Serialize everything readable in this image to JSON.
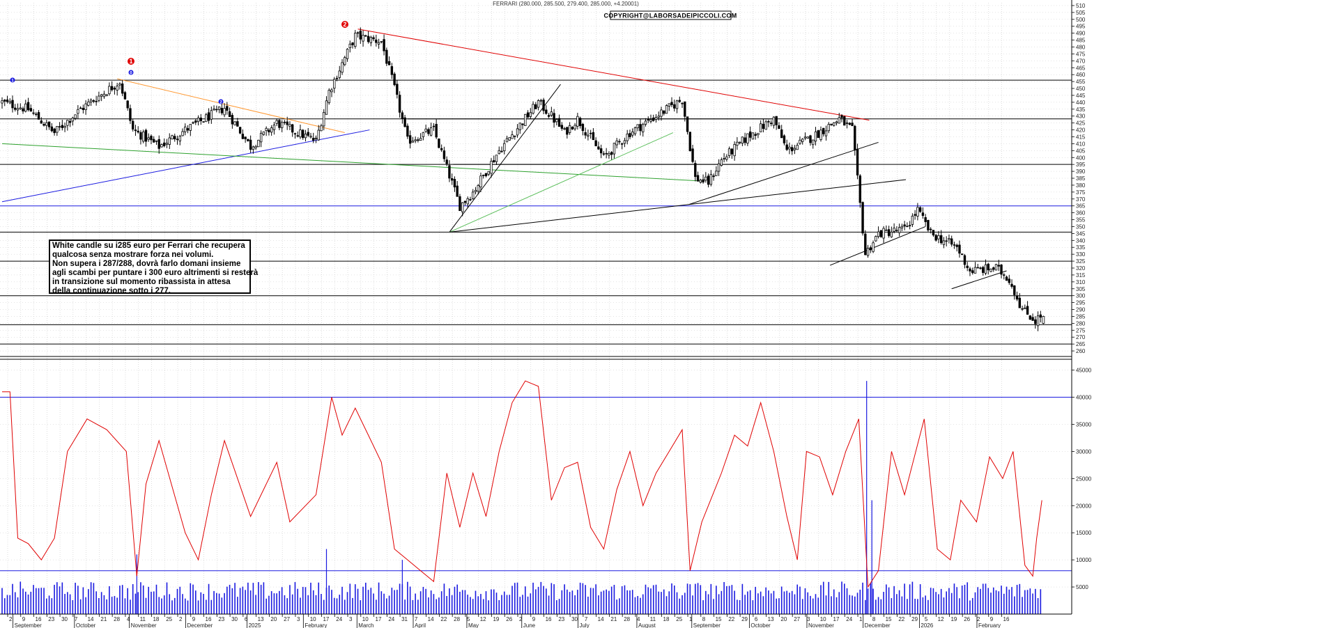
{
  "header": {
    "title": "FERRARI (280.000, 285.500, 279.400, 285.000, +4.20001)",
    "copyright": "COPYRIGHT@LABORSADEIPICCOLI.COM"
  },
  "note_lines": [
    "White candle su i285 euro per Ferrari che  recupera",
    "qualcosa senza mostrare forza nei volumi.",
    "Non supera i 287/288, dovrà farlo domani insieme",
    "agli scambi per puntare i 300 euro altrimenti si resterà",
    "in transizione sul momento ribassista in attesa",
    "della continuazione sotto i 277."
  ],
  "markers": [
    {
      "label": "1",
      "color": "#e00000"
    },
    {
      "label": "2",
      "color": "#e00000"
    }
  ],
  "wave_labels": [
    "1",
    "0",
    "2"
  ],
  "colors": {
    "candle": "#000000",
    "volume_bars": "#1a1ae0",
    "volume_average": "#e00000",
    "downtrend_line": "#e00000",
    "orange_line": "#ff9933",
    "uptrend_blue": "#1a1ae0",
    "green_line": "#2ca02c",
    "light_green_line": "#5cbf5c",
    "horizontal_levels_black": "#000000",
    "horizontal_levels_blue": "#1a1ae0",
    "grid": "#c8c8c8"
  },
  "chart_data": [
    {
      "type": "candlestick",
      "title": "FERRARI (280.000, 285.500, 279.400, 285.000, +4.20001)",
      "last_bar": {
        "open": 280.0,
        "high": 285.5,
        "low": 279.4,
        "close": 285.0,
        "change": 4.20001
      },
      "y_ticks": [
        510,
        505,
        500,
        495,
        490,
        485,
        480,
        475,
        470,
        465,
        460,
        455,
        450,
        445,
        440,
        435,
        430,
        425,
        420,
        415,
        410,
        405,
        400,
        395,
        390,
        385,
        380,
        375,
        370,
        365,
        360,
        355,
        350,
        345,
        340,
        335,
        330,
        325,
        320,
        315,
        310,
        305,
        300,
        295,
        290,
        285,
        280,
        275,
        270,
        265,
        260
      ],
      "ylim": [
        256,
        512
      ],
      "x_ticks": [
        "2",
        "9",
        "16",
        "23",
        "30",
        "7",
        "14",
        "21",
        "28",
        "4",
        "11",
        "18",
        "25",
        "2",
        "9",
        "16",
        "23",
        "30",
        "6",
        "13",
        "20",
        "27",
        "3",
        "10",
        "17",
        "24",
        "3",
        "10",
        "17",
        "24",
        "31",
        "7",
        "14",
        "22",
        "28",
        "5",
        "12",
        "19",
        "26",
        "2",
        "9",
        "16",
        "23",
        "30",
        "7",
        "14",
        "21",
        "28",
        "4",
        "11",
        "18",
        "25",
        "1",
        "8",
        "15",
        "22",
        "29",
        "6",
        "13",
        "20",
        "27",
        "3",
        "10",
        "17",
        "24",
        "1",
        "8",
        "15",
        "22",
        "29",
        "5",
        "12",
        "19",
        "26",
        "2",
        "9",
        "16"
      ],
      "month_labels": [
        "September",
        "October",
        "November",
        "December",
        "2025",
        "February",
        "March",
        "April",
        "May",
        "June",
        "July",
        "August",
        "September",
        "October",
        "November",
        "December",
        "2026",
        "February"
      ],
      "anchors": [
        {
          "week": 0,
          "close": 440
        },
        {
          "week": 2,
          "close": 435
        },
        {
          "week": 4,
          "close": 418
        },
        {
          "week": 6,
          "close": 435
        },
        {
          "week": 9,
          "close": 455
        },
        {
          "week": 10,
          "close": 420
        },
        {
          "week": 12,
          "close": 408
        },
        {
          "week": 14,
          "close": 420
        },
        {
          "week": 17,
          "close": 436
        },
        {
          "week": 19,
          "close": 408
        },
        {
          "week": 21,
          "close": 425
        },
        {
          "week": 24,
          "close": 412
        },
        {
          "week": 25,
          "close": 448
        },
        {
          "week": 27,
          "close": 488
        },
        {
          "week": 29,
          "close": 484
        },
        {
          "week": 30,
          "close": 450
        },
        {
          "week": 31,
          "close": 412
        },
        {
          "week": 33,
          "close": 420
        },
        {
          "week": 35,
          "close": 365
        },
        {
          "week": 36,
          "close": 375
        },
        {
          "week": 38,
          "close": 405
        },
        {
          "week": 41,
          "close": 440
        },
        {
          "week": 42,
          "close": 430
        },
        {
          "week": 43,
          "close": 418
        },
        {
          "week": 44,
          "close": 428
        },
        {
          "week": 46,
          "close": 400
        },
        {
          "week": 48,
          "close": 418
        },
        {
          "week": 50,
          "close": 430
        },
        {
          "week": 52,
          "close": 442
        },
        {
          "week": 53,
          "close": 385
        },
        {
          "week": 54,
          "close": 382
        },
        {
          "week": 55,
          "close": 398
        },
        {
          "week": 57,
          "close": 415
        },
        {
          "week": 59,
          "close": 428
        },
        {
          "week": 60,
          "close": 405
        },
        {
          "week": 62,
          "close": 415
        },
        {
          "week": 64,
          "close": 428
        },
        {
          "week": 65,
          "close": 420
        },
        {
          "week": 66,
          "close": 330
        },
        {
          "week": 67,
          "close": 345
        },
        {
          "week": 69,
          "close": 348
        },
        {
          "week": 70,
          "close": 362
        },
        {
          "week": 71,
          "close": 345
        },
        {
          "week": 73,
          "close": 335
        },
        {
          "week": 74,
          "close": 318
        },
        {
          "week": 76,
          "close": 320
        },
        {
          "week": 77,
          "close": 312
        },
        {
          "week": 78,
          "close": 290
        },
        {
          "week": 79,
          "close": 282
        },
        {
          "week": 79.4,
          "close": 285
        }
      ],
      "horizontal_levels": [
        456,
        428,
        395,
        365,
        346,
        325,
        300,
        279,
        265
      ],
      "trend_lines": [
        {
          "name": "downtrend-red",
          "from": {
            "week": 27.2,
            "price": 493
          },
          "to": {
            "week": 66.3,
            "price": 427
          }
        },
        {
          "name": "orange",
          "from": {
            "week": 8.8,
            "price": 457
          },
          "to": {
            "week": 26.2,
            "price": 418
          }
        },
        {
          "name": "blue-uptrend",
          "from": {
            "week": 0,
            "price": 368
          },
          "to": {
            "week": 28.1,
            "price": 420
          }
        },
        {
          "name": "green",
          "from": {
            "week": 0,
            "price": 410
          },
          "to": {
            "week": 53.5,
            "price": 383
          }
        },
        {
          "name": "black-fan-steep",
          "from": {
            "week": 34.2,
            "price": 346
          },
          "to": {
            "week": 42.7,
            "price": 453
          }
        },
        {
          "name": "green-fan",
          "from": {
            "week": 34.2,
            "price": 346
          },
          "to": {
            "week": 51.3,
            "price": 418
          }
        },
        {
          "name": "black-fan-flat",
          "from": {
            "week": 34.2,
            "price": 346
          },
          "to": {
            "week": 52.5,
            "price": 366
          }
        },
        {
          "name": "black-wedge-low",
          "from": {
            "week": 52.5,
            "price": 366
          },
          "to": {
            "week": 69.1,
            "price": 384
          }
        },
        {
          "name": "black-wedge-high",
          "from": {
            "week": 52.5,
            "price": 366
          },
          "to": {
            "week": 67.0,
            "price": 411
          }
        },
        {
          "name": "black-short-up",
          "from": {
            "week": 63.3,
            "price": 322
          },
          "to": {
            "week": 70.6,
            "price": 350
          }
        },
        {
          "name": "black-short-dec",
          "from": {
            "week": 72.6,
            "price": 305
          },
          "to": {
            "week": 76.8,
            "price": 318
          }
        }
      ]
    },
    {
      "type": "bar+line",
      "title": "",
      "y_ticks": [
        45000,
        40000,
        35000,
        30000,
        25000,
        20000,
        15000,
        10000,
        5000
      ],
      "ylim": [
        0,
        47000
      ],
      "horizontal_levels": [
        40000,
        8000
      ],
      "volume_average_anchors": [
        {
          "week": 0,
          "v": 41000
        },
        {
          "week": 0.6,
          "v": 41000
        },
        {
          "week": 1.2,
          "v": 14000
        },
        {
          "week": 2,
          "v": 13000
        },
        {
          "week": 3,
          "v": 10000
        },
        {
          "week": 4,
          "v": 14000
        },
        {
          "week": 5,
          "v": 30000
        },
        {
          "week": 6.5,
          "v": 36000
        },
        {
          "week": 8,
          "v": 34000
        },
        {
          "week": 9.5,
          "v": 30000
        },
        {
          "week": 10.3,
          "v": 7000
        },
        {
          "week": 11,
          "v": 24000
        },
        {
          "week": 12,
          "v": 32000
        },
        {
          "week": 14,
          "v": 15000
        },
        {
          "week": 15,
          "v": 10000
        },
        {
          "week": 16,
          "v": 22000
        },
        {
          "week": 17,
          "v": 32000
        },
        {
          "week": 18,
          "v": 25000
        },
        {
          "week": 19,
          "v": 18000
        },
        {
          "week": 21,
          "v": 28000
        },
        {
          "week": 22,
          "v": 17000
        },
        {
          "week": 24,
          "v": 22000
        },
        {
          "week": 25.2,
          "v": 40000
        },
        {
          "week": 26,
          "v": 33000
        },
        {
          "week": 27,
          "v": 38000
        },
        {
          "week": 28,
          "v": 33000
        },
        {
          "week": 29,
          "v": 28000
        },
        {
          "week": 30,
          "v": 12000
        },
        {
          "week": 31,
          "v": 10000
        },
        {
          "week": 32,
          "v": 8000
        },
        {
          "week": 33,
          "v": 6000
        },
        {
          "week": 34,
          "v": 26000
        },
        {
          "week": 35,
          "v": 16000
        },
        {
          "week": 36,
          "v": 26000
        },
        {
          "week": 37,
          "v": 18000
        },
        {
          "week": 38,
          "v": 30000
        },
        {
          "week": 39,
          "v": 39000
        },
        {
          "week": 40,
          "v": 43000
        },
        {
          "week": 41,
          "v": 42000
        },
        {
          "week": 42,
          "v": 21000
        },
        {
          "week": 43,
          "v": 27000
        },
        {
          "week": 44,
          "v": 28000
        },
        {
          "week": 45,
          "v": 16000
        },
        {
          "week": 46,
          "v": 12000
        },
        {
          "week": 47,
          "v": 23000
        },
        {
          "week": 48,
          "v": 30000
        },
        {
          "week": 49,
          "v": 20000
        },
        {
          "week": 50,
          "v": 26000
        },
        {
          "week": 51,
          "v": 30000
        },
        {
          "week": 52,
          "v": 34000
        },
        {
          "week": 52.6,
          "v": 8000
        },
        {
          "week": 53.5,
          "v": 17000
        },
        {
          "week": 55,
          "v": 26000
        },
        {
          "week": 56,
          "v": 33000
        },
        {
          "week": 57,
          "v": 31000
        },
        {
          "week": 58,
          "v": 39000
        },
        {
          "week": 59,
          "v": 30000
        },
        {
          "week": 60,
          "v": 18000
        },
        {
          "week": 60.8,
          "v": 10000
        },
        {
          "week": 61.5,
          "v": 30000
        },
        {
          "week": 62.5,
          "v": 29000
        },
        {
          "week": 63.5,
          "v": 22000
        },
        {
          "week": 64.5,
          "v": 30000
        },
        {
          "week": 65.5,
          "v": 36000
        },
        {
          "week": 66.2,
          "v": 5000
        },
        {
          "week": 67,
          "v": 8000
        },
        {
          "week": 68,
          "v": 30000
        },
        {
          "week": 69,
          "v": 22000
        },
        {
          "week": 70.5,
          "v": 36000
        },
        {
          "week": 71.5,
          "v": 12000
        },
        {
          "week": 72.5,
          "v": 10000
        },
        {
          "week": 73.3,
          "v": 21000
        },
        {
          "week": 74.5,
          "v": 17000
        },
        {
          "week": 75.5,
          "v": 29000
        },
        {
          "week": 76.5,
          "v": 25000
        },
        {
          "week": 77.3,
          "v": 30000
        },
        {
          "week": 78.2,
          "v": 9000
        },
        {
          "week": 78.8,
          "v": 7000
        },
        {
          "week": 79.1,
          "v": 14000
        },
        {
          "week": 79.5,
          "v": 21000
        }
      ],
      "volume_spikes": [
        {
          "week": 10.3,
          "v": 11000
        },
        {
          "week": 24.8,
          "v": 12000
        },
        {
          "week": 30.6,
          "v": 10000
        },
        {
          "week": 66.1,
          "v": 43000
        },
        {
          "week": 66.5,
          "v": 21000
        }
      ]
    }
  ]
}
